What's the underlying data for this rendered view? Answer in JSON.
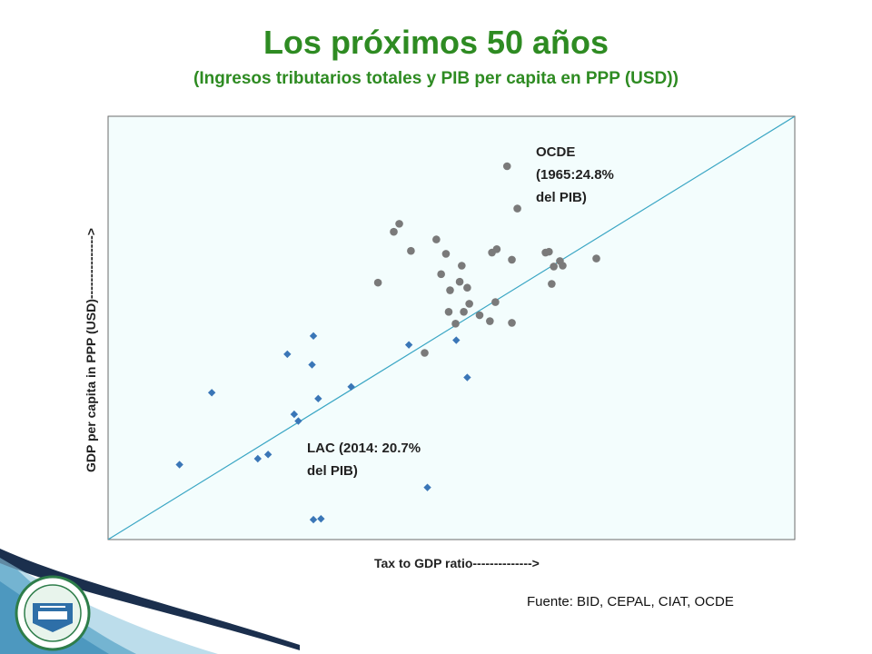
{
  "header": {
    "title": "Los próximos 50 años",
    "subtitle": "(Ingresos tributarios totales y PIB per capita en PPP (USD))"
  },
  "footer": {
    "source": "Fuente: BID, CEPAL, CIAT, OCDE"
  },
  "colors": {
    "title": "#2e8b22",
    "plot_bg": "#f3fdfd",
    "diagonal": "#3aa6c4",
    "lac": "#3a76b7",
    "ocde": "#7a7a7a"
  },
  "chart_data": {
    "type": "scatter",
    "xlabel": "Tax to GDP ratio-------------->",
    "ylabel": "GDP per capita in PPP (USD)--------------->",
    "xlim": [
      0,
      100
    ],
    "ylim": [
      0,
      100
    ],
    "grid": false,
    "annotations": [
      {
        "line1": "OCDE",
        "line2": "(1965:24.8%",
        "line3": "del PIB)"
      },
      {
        "line1": "LAC (2014: 20.7%",
        "line2": "del PIB)"
      }
    ],
    "series": [
      {
        "marker": "diamond",
        "points": [
          {
            "x": 10.4,
            "y": 17.7
          },
          {
            "x": 15.1,
            "y": 34.7
          },
          {
            "x": 21.8,
            "y": 19.1
          },
          {
            "x": 23.3,
            "y": 20.1
          },
          {
            "x": 26.1,
            "y": 43.8
          },
          {
            "x": 27.1,
            "y": 29.6
          },
          {
            "x": 27.7,
            "y": 28.0
          },
          {
            "x": 29.7,
            "y": 41.3
          },
          {
            "x": 29.9,
            "y": 48.1
          },
          {
            "x": 30.6,
            "y": 33.3
          },
          {
            "x": 35.4,
            "y": 36.1
          },
          {
            "x": 43.8,
            "y": 46.0
          },
          {
            "x": 46.5,
            "y": 12.3
          },
          {
            "x": 50.7,
            "y": 47.1
          },
          {
            "x": 52.3,
            "y": 38.3
          },
          {
            "x": 29.9,
            "y": 4.7
          },
          {
            "x": 31.0,
            "y": 4.9
          }
        ]
      },
      {
        "marker": "circle",
        "points": [
          {
            "x": 39.3,
            "y": 60.7
          },
          {
            "x": 41.6,
            "y": 72.7
          },
          {
            "x": 42.4,
            "y": 74.6
          },
          {
            "x": 44.1,
            "y": 68.2
          },
          {
            "x": 46.1,
            "y": 44.1
          },
          {
            "x": 47.8,
            "y": 70.9
          },
          {
            "x": 48.5,
            "y": 62.7
          },
          {
            "x": 49.2,
            "y": 67.5
          },
          {
            "x": 49.6,
            "y": 53.8
          },
          {
            "x": 49.8,
            "y": 58.9
          },
          {
            "x": 50.6,
            "y": 51.0
          },
          {
            "x": 51.2,
            "y": 60.9
          },
          {
            "x": 51.5,
            "y": 64.7
          },
          {
            "x": 51.8,
            "y": 53.8
          },
          {
            "x": 52.3,
            "y": 59.5
          },
          {
            "x": 52.6,
            "y": 55.7
          },
          {
            "x": 54.1,
            "y": 53.0
          },
          {
            "x": 55.6,
            "y": 51.6
          },
          {
            "x": 55.9,
            "y": 67.8
          },
          {
            "x": 56.4,
            "y": 56.1
          },
          {
            "x": 56.6,
            "y": 68.6
          },
          {
            "x": 58.1,
            "y": 88.2
          },
          {
            "x": 58.8,
            "y": 66.1
          },
          {
            "x": 58.8,
            "y": 51.2
          },
          {
            "x": 59.6,
            "y": 78.2
          },
          {
            "x": 63.7,
            "y": 67.8
          },
          {
            "x": 64.2,
            "y": 68.0
          },
          {
            "x": 64.6,
            "y": 60.4
          },
          {
            "x": 64.9,
            "y": 64.5
          },
          {
            "x": 65.8,
            "y": 65.8
          },
          {
            "x": 66.2,
            "y": 64.7
          },
          {
            "x": 71.1,
            "y": 66.4
          }
        ]
      }
    ]
  }
}
